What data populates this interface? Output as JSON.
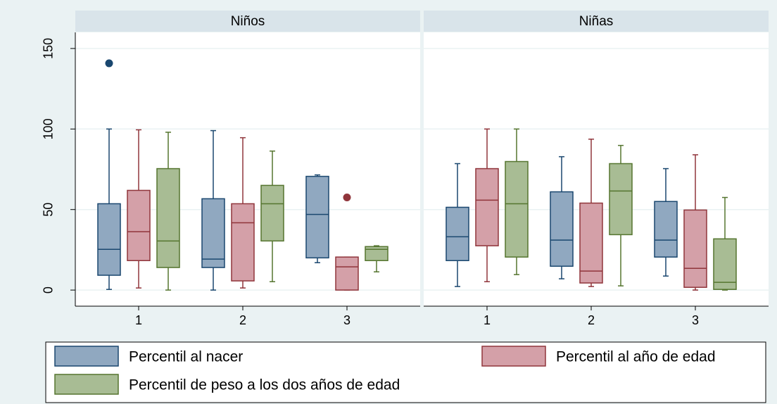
{
  "chart_data": {
    "type": "box",
    "panels": [
      "Niños",
      "Niñas"
    ],
    "categories": [
      "1",
      "2",
      "3"
    ],
    "ylim": [
      -10,
      160
    ],
    "yticks": [
      0,
      50,
      100,
      150
    ],
    "grid": true,
    "series": [
      {
        "name": "Percentil al nacer",
        "color": "#1a476f",
        "fill": "#90a8c0",
        "values": [
          [
            {
              "min": 0.4,
              "q1": 9.2,
              "median": 25.3,
              "q3": 53.6,
              "max": 100,
              "outliers": [
                140.8
              ]
            },
            {
              "min": 0,
              "q1": 14,
              "median": 19.2,
              "q3": 56.7,
              "max": 99
            },
            {
              "min": 17,
              "q1": 20,
              "median": 47,
              "q3": 70.6,
              "max": 71.5
            }
          ],
          [
            {
              "min": 2.2,
              "q1": 18.3,
              "median": 33.1,
              "q3": 51.4,
              "max": 78.5
            },
            {
              "min": 7,
              "q1": 14.8,
              "median": 31,
              "q3": 61,
              "max": 82.8
            },
            {
              "min": 8.7,
              "q1": 20.5,
              "median": 31,
              "q3": 55,
              "max": 75.4
            }
          ]
        ]
      },
      {
        "name": "Percentil al año de edad",
        "color": "#90353b",
        "fill": "#d4a0a8",
        "values": [
          [
            {
              "min": 1.3,
              "q1": 18.3,
              "median": 36.2,
              "q3": 61.9,
              "max": 99.5
            },
            {
              "min": 1.3,
              "q1": 5.7,
              "median": 41.8,
              "q3": 53.6,
              "max": 94.6
            },
            {
              "min": 0,
              "q1": 0,
              "median": 14.4,
              "q3": 20.5,
              "max": 20.5,
              "outliers": [
                57.5
              ]
            }
          ],
          [
            {
              "min": 5.2,
              "q1": 27.5,
              "median": 55.8,
              "q3": 75.4,
              "max": 100
            },
            {
              "min": 2.2,
              "q1": 4.4,
              "median": 11.8,
              "q3": 54,
              "max": 93.7
            },
            {
              "min": 0,
              "q1": 1.7,
              "median": 13.5,
              "q3": 49.7,
              "max": 84
            }
          ]
        ]
      },
      {
        "name": "Percentil de peso a los dos años de edad",
        "color": "#55752f",
        "fill": "#a8bc94",
        "values": [
          [
            {
              "min": 0,
              "q1": 14,
              "median": 30.5,
              "q3": 75.4,
              "max": 98
            },
            {
              "min": 5.2,
              "q1": 30.5,
              "median": 53.6,
              "q3": 65,
              "max": 86.3
            },
            {
              "min": 11.3,
              "q1": 18.3,
              "median": 25.3,
              "q3": 27,
              "max": 27.5
            }
          ],
          [
            {
              "min": 9.6,
              "q1": 20.5,
              "median": 53.6,
              "q3": 79.8,
              "max": 100
            },
            {
              "min": 2.6,
              "q1": 34.4,
              "median": 61.5,
              "q3": 78.5,
              "max": 89.8
            },
            {
              "min": 0,
              "q1": 0.4,
              "median": 4.8,
              "q3": 31.8,
              "max": 57.5
            }
          ]
        ]
      }
    ]
  }
}
